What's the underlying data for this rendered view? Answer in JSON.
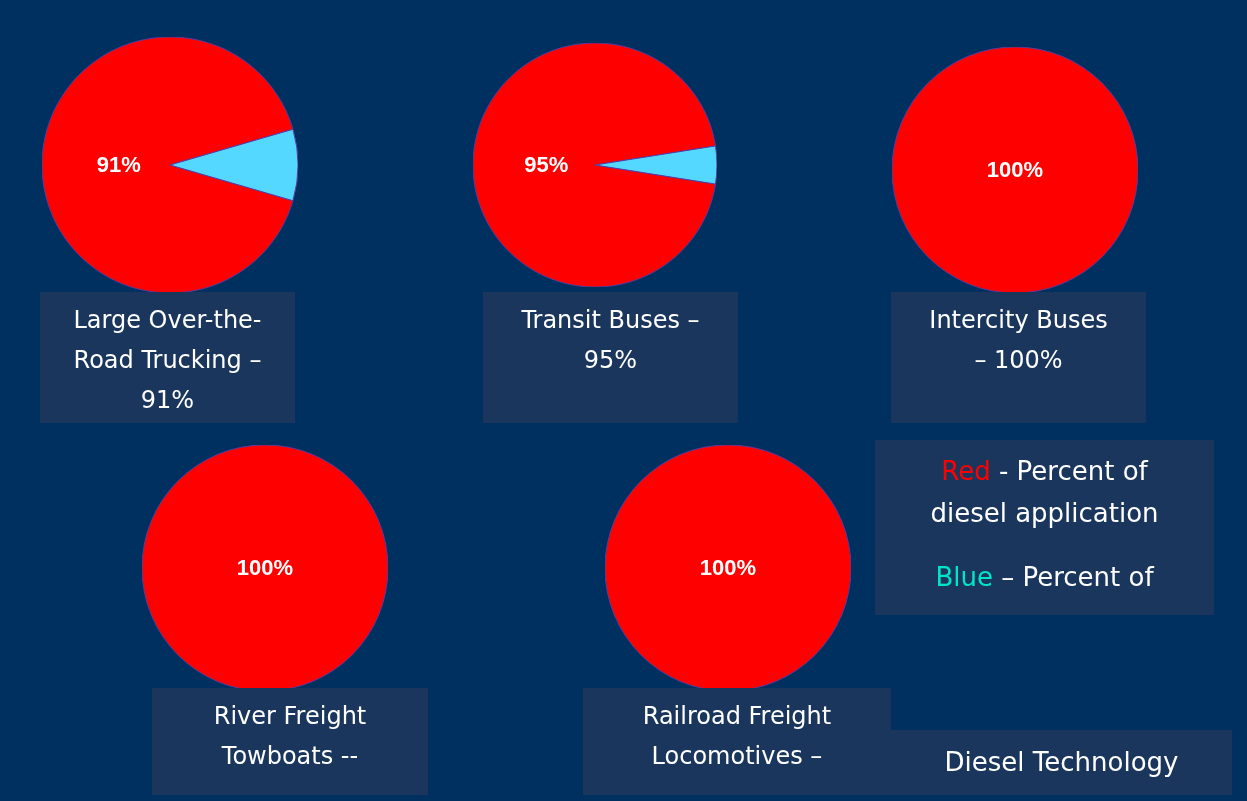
{
  "chart_data": [
    {
      "type": "pie",
      "title": "Large Over-the-Road Trucking – 91%",
      "categories": [
        null,
        null
      ],
      "values": [
        91,
        9
      ],
      "colors": [
        "#ff0000",
        "#55d8ff"
      ],
      "value_labels": [
        "91%",
        null
      ]
    },
    {
      "type": "pie",
      "title": "Transit Buses – 95%",
      "categories": [
        null,
        null
      ],
      "values": [
        95,
        5
      ],
      "colors": [
        "#ff0000",
        "#55d8ff"
      ],
      "value_labels": [
        "95%",
        null
      ]
    },
    {
      "type": "pie",
      "title": "Intercity Buses – 100%",
      "categories": [
        null
      ],
      "values": [
        100
      ],
      "colors": [
        "#ff0000"
      ],
      "value_labels": [
        "100%"
      ]
    },
    {
      "type": "pie",
      "title": "River Freight Towboats --",
      "categories": [
        null
      ],
      "values": [
        100
      ],
      "colors": [
        "#ff0000"
      ],
      "value_labels": [
        "100%"
      ]
    },
    {
      "type": "pie",
      "title": "Railroad Freight Locomotives –",
      "categories": [
        null
      ],
      "values": [
        100
      ],
      "colors": [
        "#ff0000"
      ],
      "value_labels": [
        "100%"
      ]
    },
    {
      "type": "other",
      "annotations": [
        "Red - Percent of diesel application",
        "Blue – Percent of",
        "Diesel Technology"
      ],
      "colors": [
        "#ff0000",
        "#00e5c8",
        null
      ]
    }
  ]
}
